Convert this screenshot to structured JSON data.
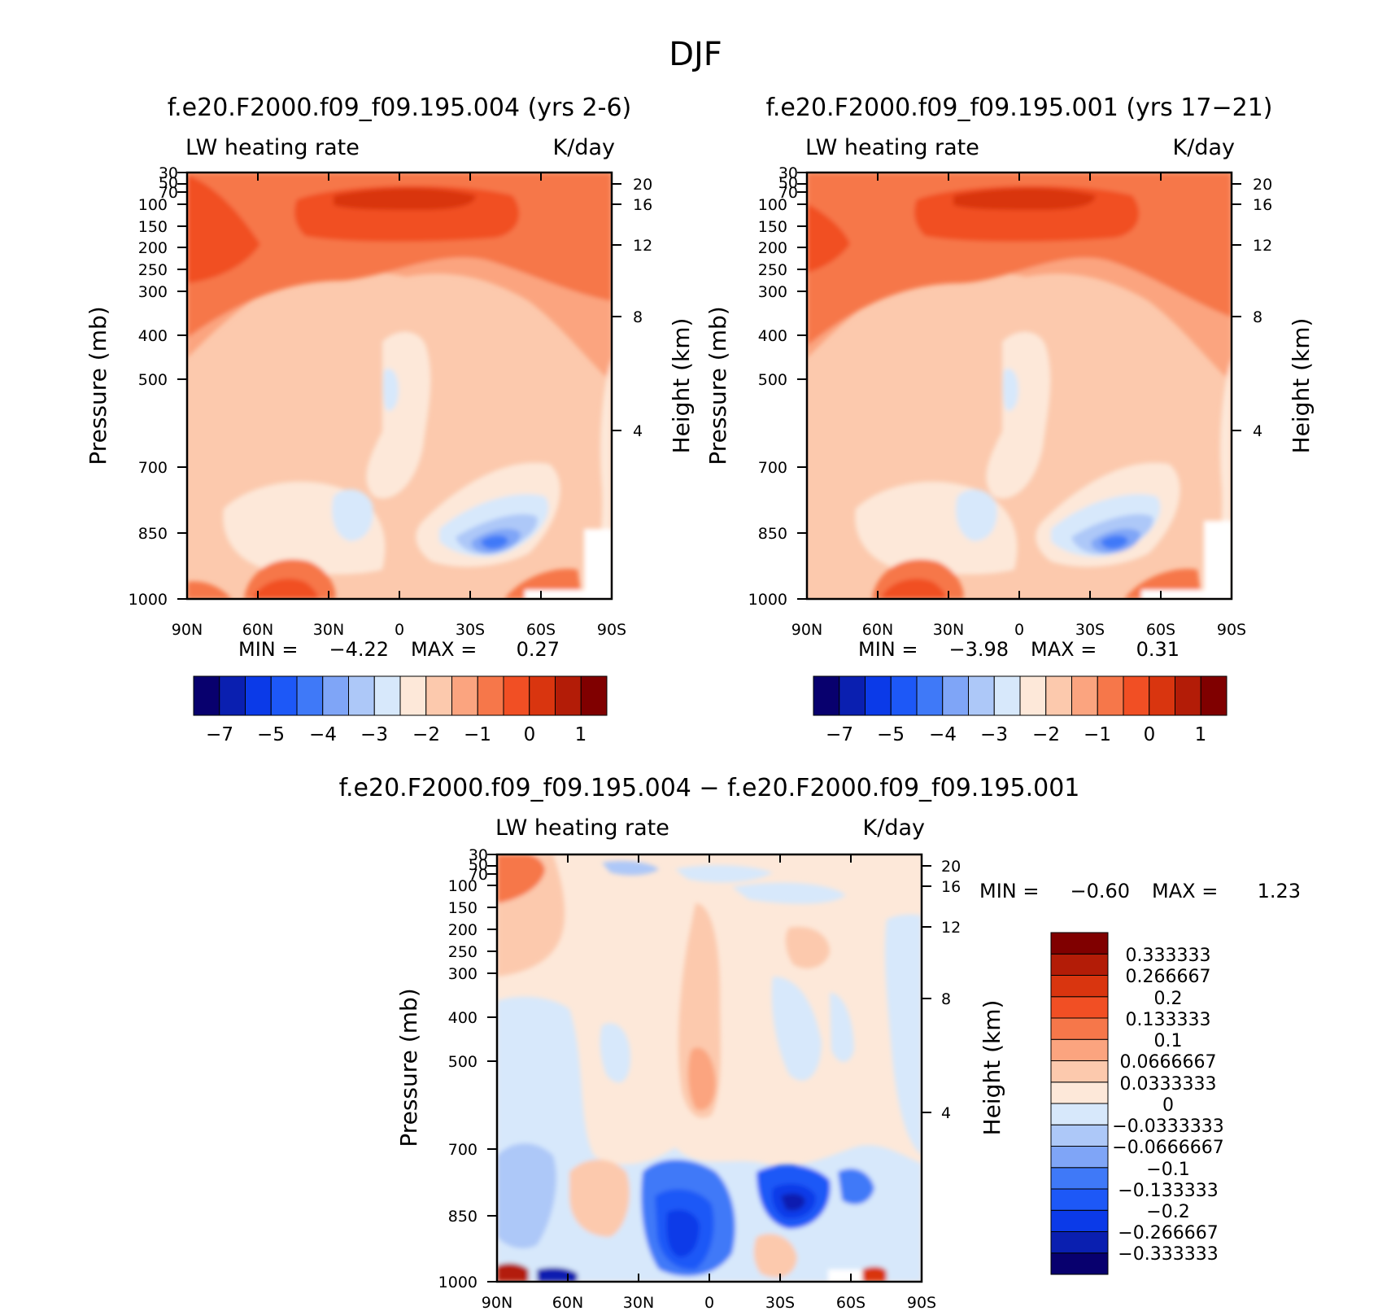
{
  "figure_title": "DJF",
  "chart_data": [
    {
      "type": "heatmap",
      "title": "f.e20.F2000.f09_f09.195.004 (yrs 2-6)",
      "left_label": "LW heating rate",
      "right_label": "K/day",
      "xlabel": "",
      "ylabel": "Pressure (mb)",
      "ylabel_right": "Height (km)",
      "x_ticks": [
        "90N",
        "60N",
        "30N",
        "0",
        "30S",
        "60S",
        "90S"
      ],
      "y_ticks": [
        "30",
        "50",
        "70",
        "100",
        "150",
        "200",
        "250",
        "300",
        "400",
        "500",
        "700",
        "850",
        "1000"
      ],
      "y_right_ticks": [
        "20",
        "16",
        "12",
        "8",
        "4"
      ],
      "ylim": [
        1000,
        30
      ],
      "min_label": "MIN =",
      "min_value": "−4.22",
      "max_label": "MAX =",
      "max_value": "0.27",
      "colorbar_labels": [
        "−7",
        "−5",
        "−4",
        "−3",
        "−2",
        "−1",
        "0",
        "1"
      ],
      "colorbar_levels": 16
    },
    {
      "type": "heatmap",
      "title": "f.e20.F2000.f09_f09.195.001 (yrs 17−21)",
      "left_label": "LW heating rate",
      "right_label": "K/day",
      "xlabel": "",
      "ylabel": "Pressure (mb)",
      "ylabel_right": "Height (km)",
      "x_ticks": [
        "90N",
        "60N",
        "30N",
        "0",
        "30S",
        "60S",
        "90S"
      ],
      "y_ticks": [
        "30",
        "50",
        "70",
        "100",
        "150",
        "200",
        "250",
        "300",
        "400",
        "500",
        "700",
        "850",
        "1000"
      ],
      "y_right_ticks": [
        "20",
        "16",
        "12",
        "8",
        "4"
      ],
      "ylim": [
        1000,
        30
      ],
      "min_label": "MIN =",
      "min_value": "−3.98",
      "max_label": "MAX =",
      "max_value": "0.31",
      "colorbar_labels": [
        "−7",
        "−5",
        "−4",
        "−3",
        "−2",
        "−1",
        "0",
        "1"
      ],
      "colorbar_levels": 16
    },
    {
      "type": "heatmap",
      "title": "f.e20.F2000.f09_f09.195.004 − f.e20.F2000.f09_f09.195.001",
      "left_label": "LW heating rate",
      "right_label": "K/day",
      "xlabel": "",
      "ylabel": "Pressure (mb)",
      "ylabel_right": "Height (km)",
      "x_ticks": [
        "90N",
        "60N",
        "30N",
        "0",
        "30S",
        "60S",
        "90S"
      ],
      "y_ticks": [
        "30",
        "50",
        "70",
        "100",
        "150",
        "200",
        "250",
        "300",
        "400",
        "500",
        "700",
        "850",
        "1000"
      ],
      "y_right_ticks": [
        "20",
        "16",
        "12",
        "8",
        "4"
      ],
      "ylim": [
        1000,
        30
      ],
      "min_label": "MIN =",
      "min_value": "−0.60",
      "max_label": "MAX =",
      "max_value": "1.23",
      "colorbar_labels": [
        "0.333333",
        "0.266667",
        "0.2",
        "0.133333",
        "0.1",
        "0.0666667",
        "0.0333333",
        "0",
        "−0.0333333",
        "−0.0666667",
        "−0.1",
        "−0.133333",
        "−0.2",
        "−0.266667",
        "−0.333333"
      ],
      "colorbar_levels": 16
    }
  ],
  "colors": {
    "scale": [
      "#08006e",
      "#0a1fb0",
      "#0b3ae8",
      "#1d58f7",
      "#3f79f8",
      "#7fa5f7",
      "#adc8f8",
      "#d7e8fb",
      "#fde8d9",
      "#fcc9ad",
      "#fba47f",
      "#f6774a",
      "#f14f24",
      "#d9350f",
      "#b31c07",
      "#800000"
    ]
  }
}
